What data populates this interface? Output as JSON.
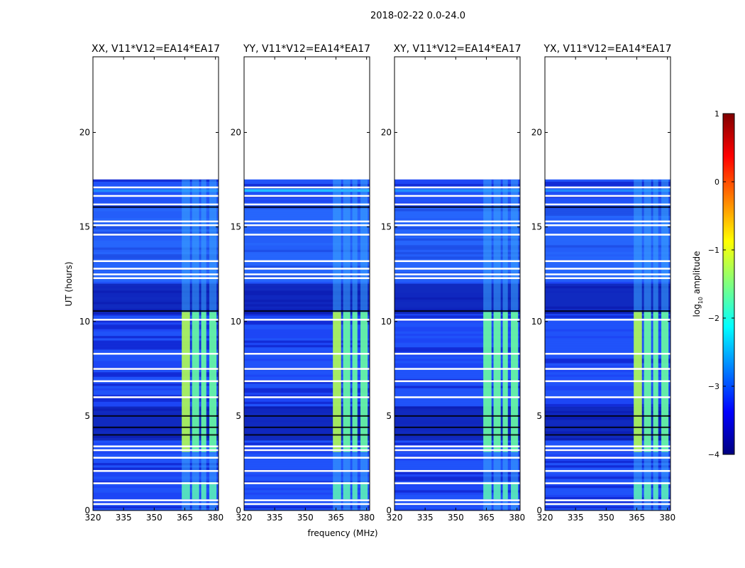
{
  "chart_data": {
    "type": "heatmap",
    "suptitle": "2018-02-22 0.0-24.0",
    "xlabel": "frequency (MHz)",
    "ylabel": "UT (hours)",
    "xlim": [
      320,
      381.5
    ],
    "ylim": [
      0,
      24
    ],
    "xticks": [
      320,
      335,
      350,
      365,
      380
    ],
    "yticks": [
      0,
      5,
      10,
      15,
      20
    ],
    "data_end_hours": 17.5,
    "panels": [
      {
        "title": "XX, V11*V12=EA14*EA17"
      },
      {
        "title": "YY, V11*V12=EA14*EA17"
      },
      {
        "title": "XY, V11*V12=EA14*EA17"
      },
      {
        "title": "YX, V11*V12=EA14*EA17"
      }
    ],
    "bright_channels_mhz": [
      [
        363.5,
        367.5
      ],
      [
        368.5,
        372
      ],
      [
        373,
        375.5
      ],
      [
        377,
        380.5
      ]
    ],
    "bright_time_ranges_hours": [
      [
        3.1,
        10.5
      ],
      [
        0.6,
        1.5
      ]
    ],
    "flag_gaps_hours": [
      0.35,
      0.55,
      1.45,
      2.1,
      2.8,
      3.2,
      3.4,
      6.0,
      6.85,
      7.5,
      8.3,
      10.1,
      12.3,
      12.5,
      12.8,
      13.2,
      14.6,
      15.1,
      15.3,
      16.2,
      16.65,
      17.1
    ],
    "colorbar": {
      "label": "log10 amplitude",
      "label_main": "log",
      "label_sub": "10",
      "label_rest": " amplitude",
      "range": [
        -4,
        1
      ],
      "ticks": [
        {
          "value": 1,
          "label": "1"
        },
        {
          "value": 0,
          "label": "0"
        },
        {
          "value": -1,
          "label": "−1"
        },
        {
          "value": -2,
          "label": "−2"
        },
        {
          "value": -3,
          "label": "−3"
        },
        {
          "value": -4,
          "label": "−4"
        }
      ],
      "stops": [
        "#00007f",
        "#0000ff",
        "#007fff",
        "#00ffff",
        "#7fff7f",
        "#ffff00",
        "#ff7f00",
        "#ff0000",
        "#7f0000"
      ]
    }
  }
}
